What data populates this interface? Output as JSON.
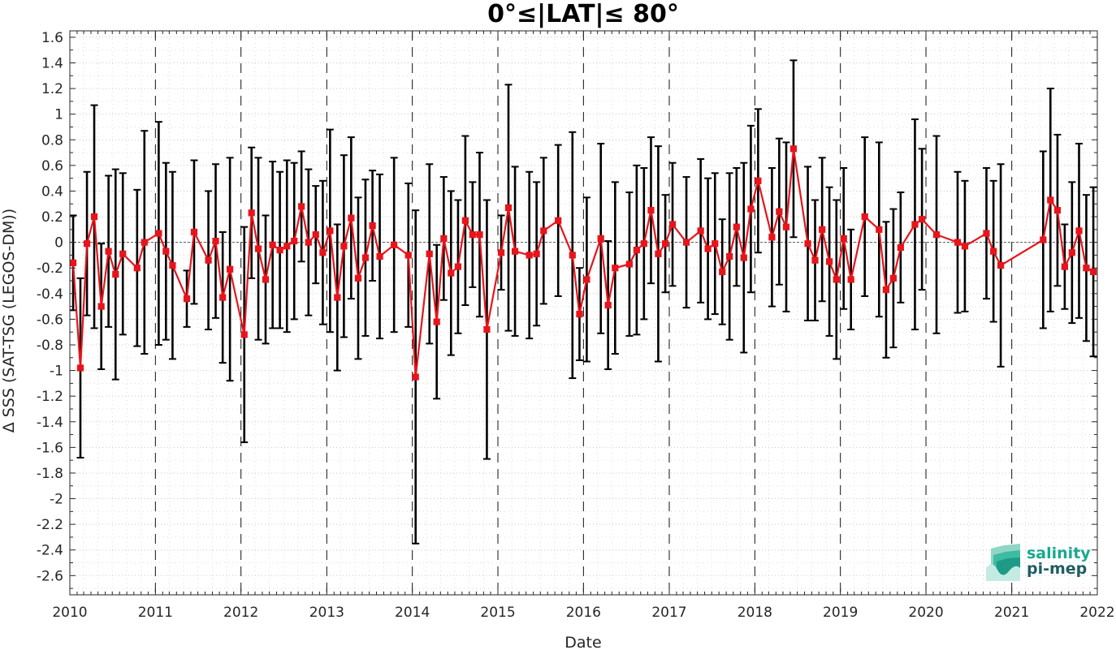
{
  "chart_data": {
    "type": "line",
    "title": "0°≤|LAT|≤ 80°",
    "xlabel": "Date",
    "ylabel": "Δ SSS (SAT-TSG (LEGOS-DM))",
    "xlim": [
      "2010-01-01",
      "2022-01-01"
    ],
    "ylim": [
      -2.75,
      1.65
    ],
    "x_ticks": [
      "2010",
      "2011",
      "2012",
      "2013",
      "2014",
      "2015",
      "2016",
      "2017",
      "2018",
      "2019",
      "2020",
      "2021",
      "2022"
    ],
    "y_ticks": [
      1.6,
      1.4,
      1.2,
      1,
      0.8,
      0.6,
      0.4,
      0.2,
      0,
      -0.2,
      -0.4,
      -0.6,
      -0.8,
      -1,
      -1.2,
      -1.4,
      -1.6,
      -1.8,
      -2,
      -2.2,
      -2.4,
      -2.6
    ],
    "grid": true,
    "year_lines": "dashed vertical lines at each year",
    "series": [
      {
        "color": "#e8141b",
        "marker": "square",
        "errorbar_color": "#000000",
        "points": [
          {
            "x": "2010-01-15",
            "y": -0.16,
            "err": 0.37
          },
          {
            "x": "2010-02-15",
            "y": -0.98,
            "err": 0.7
          },
          {
            "x": "2010-03-15",
            "y": -0.01,
            "err": 0.56
          },
          {
            "x": "2010-04-15",
            "y": 0.2,
            "err": 0.87
          },
          {
            "x": "2010-05-15",
            "y": -0.5,
            "err": 0.49
          },
          {
            "x": "2010-06-15",
            "y": -0.07,
            "err": 0.59
          },
          {
            "x": "2010-07-15",
            "y": -0.25,
            "err": 0.82
          },
          {
            "x": "2010-08-15",
            "y": -0.09,
            "err": 0.63
          },
          {
            "x": "2010-10-15",
            "y": -0.2,
            "err": 0.61
          },
          {
            "x": "2010-11-15",
            "y": 0.0,
            "err": 0.87
          },
          {
            "x": "2011-01-15",
            "y": 0.07,
            "err": 0.87
          },
          {
            "x": "2011-02-15",
            "y": -0.07,
            "err": 0.69
          },
          {
            "x": "2011-03-15",
            "y": -0.18,
            "err": 0.73
          },
          {
            "x": "2011-05-15",
            "y": -0.44,
            "err": 0.22
          },
          {
            "x": "2011-06-15",
            "y": 0.08,
            "err": 0.56
          },
          {
            "x": "2011-08-15",
            "y": -0.14,
            "err": 0.54
          },
          {
            "x": "2011-09-15",
            "y": 0.01,
            "err": 0.6
          },
          {
            "x": "2011-10-15",
            "y": -0.43,
            "err": 0.51
          },
          {
            "x": "2011-11-15",
            "y": -0.21,
            "err": 0.87
          },
          {
            "x": "2012-01-15",
            "y": -0.72,
            "err": 0.84
          },
          {
            "x": "2012-02-15",
            "y": 0.23,
            "err": 0.51
          },
          {
            "x": "2012-03-15",
            "y": -0.05,
            "err": 0.71
          },
          {
            "x": "2012-04-15",
            "y": -0.29,
            "err": 0.5
          },
          {
            "x": "2012-05-15",
            "y": -0.02,
            "err": 0.65
          },
          {
            "x": "2012-06-15",
            "y": -0.06,
            "err": 0.61
          },
          {
            "x": "2012-07-15",
            "y": -0.03,
            "err": 0.67
          },
          {
            "x": "2012-08-15",
            "y": 0.01,
            "err": 0.61
          },
          {
            "x": "2012-09-15",
            "y": 0.28,
            "err": 0.43
          },
          {
            "x": "2012-10-15",
            "y": 0.0,
            "err": 0.57
          },
          {
            "x": "2012-11-15",
            "y": 0.06,
            "err": 0.38
          },
          {
            "x": "2012-12-15",
            "y": -0.08,
            "err": 0.56
          },
          {
            "x": "2013-01-15",
            "y": 0.09,
            "err": 0.79
          },
          {
            "x": "2013-02-15",
            "y": -0.43,
            "err": 0.57
          },
          {
            "x": "2013-03-15",
            "y": -0.03,
            "err": 0.71
          },
          {
            "x": "2013-04-15",
            "y": 0.19,
            "err": 0.63
          },
          {
            "x": "2013-05-15",
            "y": -0.28,
            "err": 0.63
          },
          {
            "x": "2013-06-15",
            "y": -0.12,
            "err": 0.61
          },
          {
            "x": "2013-07-15",
            "y": 0.13,
            "err": 0.43
          },
          {
            "x": "2013-08-15",
            "y": -0.11,
            "err": 0.64
          },
          {
            "x": "2013-10-15",
            "y": -0.02,
            "err": 0.68
          },
          {
            "x": "2013-12-15",
            "y": -0.1,
            "err": 0.56
          },
          {
            "x": "2014-01-15",
            "y": -1.05,
            "err": 1.3
          },
          {
            "x": "2014-03-15",
            "y": -0.09,
            "err": 0.7
          },
          {
            "x": "2014-04-15",
            "y": -0.62,
            "err": 0.6
          },
          {
            "x": "2014-05-15",
            "y": 0.03,
            "err": 0.48
          },
          {
            "x": "2014-06-15",
            "y": -0.24,
            "err": 0.64
          },
          {
            "x": "2014-07-15",
            "y": -0.19,
            "err": 0.52
          },
          {
            "x": "2014-08-15",
            "y": 0.17,
            "err": 0.66
          },
          {
            "x": "2014-09-15",
            "y": 0.06,
            "err": 0.41
          },
          {
            "x": "2014-10-15",
            "y": 0.06,
            "err": 0.64
          },
          {
            "x": "2014-11-15",
            "y": -0.68,
            "err": 1.01
          },
          {
            "x": "2015-01-15",
            "y": -0.08,
            "err": 0.29
          },
          {
            "x": "2015-02-15",
            "y": 0.27,
            "err": 0.96
          },
          {
            "x": "2015-03-15",
            "y": -0.07,
            "err": 0.66
          },
          {
            "x": "2015-05-15",
            "y": -0.1,
            "err": 0.65
          },
          {
            "x": "2015-06-15",
            "y": -0.09,
            "err": 0.56
          },
          {
            "x": "2015-07-15",
            "y": 0.09,
            "err": 0.57
          },
          {
            "x": "2015-09-15",
            "y": 0.17,
            "err": 0.59
          },
          {
            "x": "2015-11-15",
            "y": -0.1,
            "err": 0.96
          },
          {
            "x": "2015-12-15",
            "y": -0.56,
            "err": 0.36
          },
          {
            "x": "2016-01-15",
            "y": -0.29,
            "err": 0.64
          },
          {
            "x": "2016-03-15",
            "y": 0.03,
            "err": 0.74
          },
          {
            "x": "2016-04-15",
            "y": -0.49,
            "err": 0.5
          },
          {
            "x": "2016-05-15",
            "y": -0.2,
            "err": 0.67
          },
          {
            "x": "2016-07-15",
            "y": -0.17,
            "err": 0.56
          },
          {
            "x": "2016-08-15",
            "y": -0.06,
            "err": 0.66
          },
          {
            "x": "2016-09-15",
            "y": -0.01,
            "err": 0.59
          },
          {
            "x": "2016-10-15",
            "y": 0.25,
            "err": 0.57
          },
          {
            "x": "2016-11-15",
            "y": -0.09,
            "err": 0.84
          },
          {
            "x": "2016-12-15",
            "y": -0.01,
            "err": 0.38
          },
          {
            "x": "2017-01-15",
            "y": 0.14,
            "err": 0.48
          },
          {
            "x": "2017-03-15",
            "y": 0.0,
            "err": 0.51
          },
          {
            "x": "2017-05-15",
            "y": 0.09,
            "err": 0.56
          },
          {
            "x": "2017-06-15",
            "y": -0.05,
            "err": 0.55
          },
          {
            "x": "2017-07-15",
            "y": -0.01,
            "err": 0.55
          },
          {
            "x": "2017-08-15",
            "y": -0.23,
            "err": 0.41
          },
          {
            "x": "2017-09-15",
            "y": -0.11,
            "err": 0.65
          },
          {
            "x": "2017-10-15",
            "y": 0.12,
            "err": 0.46
          },
          {
            "x": "2017-11-15",
            "y": -0.12,
            "err": 0.74
          },
          {
            "x": "2017-12-15",
            "y": 0.26,
            "err": 0.65
          },
          {
            "x": "2018-01-15",
            "y": 0.48,
            "err": 0.56
          },
          {
            "x": "2018-03-15",
            "y": 0.04,
            "err": 0.54
          },
          {
            "x": "2018-04-15",
            "y": 0.24,
            "err": 0.57
          },
          {
            "x": "2018-05-15",
            "y": 0.12,
            "err": 0.66
          },
          {
            "x": "2018-06-15",
            "y": 0.73,
            "err": 0.69
          },
          {
            "x": "2018-08-15",
            "y": -0.01,
            "err": 0.6
          },
          {
            "x": "2018-09-15",
            "y": -0.14,
            "err": 0.47
          },
          {
            "x": "2018-10-15",
            "y": 0.1,
            "err": 0.56
          },
          {
            "x": "2018-11-15",
            "y": -0.15,
            "err": 0.58
          },
          {
            "x": "2018-12-15",
            "y": -0.29,
            "err": 0.62
          },
          {
            "x": "2019-01-15",
            "y": 0.03,
            "err": 0.55
          },
          {
            "x": "2019-02-15",
            "y": -0.29,
            "err": 0.39
          },
          {
            "x": "2019-04-15",
            "y": 0.2,
            "err": 0.62
          },
          {
            "x": "2019-06-15",
            "y": 0.1,
            "err": 0.68
          },
          {
            "x": "2019-07-15",
            "y": -0.37,
            "err": 0.53
          },
          {
            "x": "2019-08-15",
            "y": -0.28,
            "err": 0.54
          },
          {
            "x": "2019-09-15",
            "y": -0.04,
            "err": 0.43
          },
          {
            "x": "2019-11-15",
            "y": 0.14,
            "err": 0.82
          },
          {
            "x": "2019-12-15",
            "y": 0.18,
            "err": 0.55
          },
          {
            "x": "2020-02-15",
            "y": 0.06,
            "err": 0.77
          },
          {
            "x": "2020-05-15",
            "y": 0.0,
            "err": 0.55
          },
          {
            "x": "2020-06-15",
            "y": -0.03,
            "err": 0.51
          },
          {
            "x": "2020-09-15",
            "y": 0.07,
            "err": 0.51
          },
          {
            "x": "2020-10-15",
            "y": -0.07,
            "err": 0.55
          },
          {
            "x": "2020-11-15",
            "y": -0.18,
            "err": 0.79
          },
          {
            "x": "2021-05-15",
            "y": 0.02,
            "err": 0.69
          },
          {
            "x": "2021-06-15",
            "y": 0.33,
            "err": 0.87
          },
          {
            "x": "2021-07-15",
            "y": 0.25,
            "err": 0.59
          },
          {
            "x": "2021-08-15",
            "y": -0.19,
            "err": 0.33
          },
          {
            "x": "2021-09-15",
            "y": -0.08,
            "err": 0.55
          },
          {
            "x": "2021-10-15",
            "y": 0.09,
            "err": 0.68
          },
          {
            "x": "2021-11-15",
            "y": -0.2,
            "err": 0.57
          },
          {
            "x": "2021-12-15",
            "y": -0.23,
            "err": 0.66
          }
        ]
      }
    ]
  },
  "logo": {
    "line1": "salinity",
    "line2": "pi-mep",
    "color1": "#1aa88f",
    "color2": "#1e5e63"
  }
}
